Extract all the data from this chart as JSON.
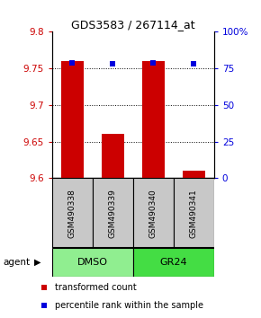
{
  "title": "GDS3583 / 267114_at",
  "samples": [
    "GSM490338",
    "GSM490339",
    "GSM490340",
    "GSM490341"
  ],
  "red_values": [
    9.76,
    9.66,
    9.76,
    9.61
  ],
  "blue_values": [
    79,
    78,
    79,
    78
  ],
  "ylim_left": [
    9.6,
    9.8
  ],
  "ylim_right": [
    0,
    100
  ],
  "yticks_left": [
    9.6,
    9.65,
    9.7,
    9.75,
    9.8
  ],
  "yticks_right": [
    0,
    25,
    50,
    75,
    100
  ],
  "ytick_labels_left": [
    "9.6",
    "9.65",
    "9.7",
    "9.75",
    "9.8"
  ],
  "ytick_labels_right": [
    "0",
    "25",
    "50",
    "75",
    "100%"
  ],
  "groups": [
    {
      "label": "DMSO",
      "indices": [
        0,
        1
      ],
      "color": "#90EE90"
    },
    {
      "label": "GR24",
      "indices": [
        2,
        3
      ],
      "color": "#44DD44"
    }
  ],
  "group_label": "agent",
  "bar_color": "#CC0000",
  "dot_color": "#0000DD",
  "legend_red": "transformed count",
  "legend_blue": "percentile rank within the sample",
  "bar_width": 0.55,
  "label_color_left": "#CC0000",
  "label_color_right": "#0000DD",
  "sample_box_color": "#C8C8C8",
  "grid_yticks": [
    9.65,
    9.7,
    9.75
  ]
}
